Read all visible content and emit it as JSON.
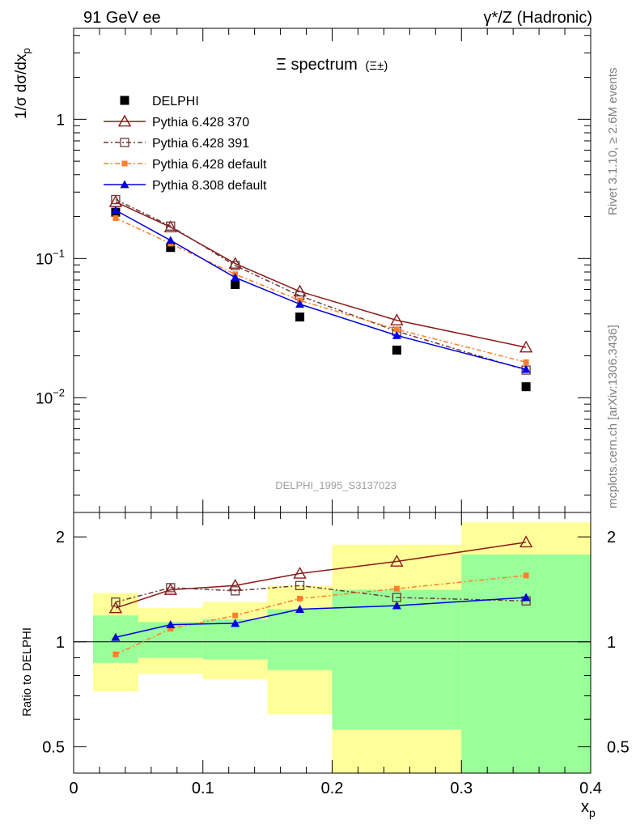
{
  "header": {
    "left": "91 GeV ee",
    "right": "γ*/Z (Hadronic)"
  },
  "side_labels": {
    "rivet": "Rivet 3.1.10, ≥ 2.6M events",
    "mcplots": "mcplots.cern.ch [arXiv:1306.3436]"
  },
  "watermark": "DELPHI_1995_S3137023",
  "colors": {
    "data": "#000000",
    "p370": "#8b1a1a",
    "p391": "#6b3a3a",
    "p6def": "#ff7f2a",
    "p8def": "#0000dd",
    "band_inner": "#99ff99",
    "band_outer": "#ffff99"
  },
  "chart_data": [
    {
      "type": "scatter",
      "panel": "main",
      "title": "Ξ spectrum",
      "title_suffix": "(Ξ±)",
      "ylabel": "1/σ dσ/dx_p",
      "yscale": "log",
      "ylim": [
        0.0015,
        4.5
      ],
      "xlim": [
        0,
        0.4
      ],
      "y_ticks": [
        "10^-2",
        "10^-1",
        "1"
      ],
      "legend": "top-left",
      "x": [
        0.0325,
        0.075,
        0.125,
        0.175,
        0.25,
        0.35
      ],
      "series": [
        {
          "name": "DELPHI",
          "values": [
            0.215,
            0.12,
            0.065,
            0.038,
            0.022,
            0.012
          ]
        },
        {
          "name": "Pythia 6.428 370",
          "values": [
            0.255,
            0.168,
            0.092,
            0.058,
            0.036,
            0.023
          ]
        },
        {
          "name": "Pythia 6.428 391",
          "values": [
            0.265,
            0.171,
            0.089,
            0.054,
            0.03,
            0.0158
          ]
        },
        {
          "name": "Pythia 6.428 default",
          "values": [
            0.195,
            0.128,
            0.077,
            0.05,
            0.031,
            0.018
          ]
        },
        {
          "name": "Pythia 8.308 default",
          "values": [
            0.222,
            0.135,
            0.073,
            0.047,
            0.028,
            0.016
          ]
        }
      ]
    },
    {
      "type": "scatter",
      "panel": "ratio",
      "ylabel": "Ratio to DELPHI",
      "xlabel": "x_p",
      "yscale": "log",
      "ylim": [
        0.42,
        2.35
      ],
      "xlim": [
        0,
        0.4
      ],
      "x_ticks": [
        "0",
        "0.1",
        "0.2",
        "0.3",
        "0.4"
      ],
      "y_ticks": [
        "0.5",
        "1",
        "2"
      ],
      "bins": [
        [
          0.015,
          0.05
        ],
        [
          0.05,
          0.1
        ],
        [
          0.1,
          0.15
        ],
        [
          0.15,
          0.2
        ],
        [
          0.2,
          0.3
        ],
        [
          0.3,
          0.4
        ]
      ],
      "band_inner": [
        [
          0.87,
          1.19
        ],
        [
          0.9,
          1.14
        ],
        [
          0.89,
          1.16
        ],
        [
          0.83,
          1.24
        ],
        [
          0.56,
          1.41
        ],
        [
          0.42,
          1.78
        ]
      ],
      "band_outer": [
        [
          0.72,
          1.38
        ],
        [
          0.81,
          1.25
        ],
        [
          0.78,
          1.3
        ],
        [
          0.62,
          1.45
        ],
        [
          0.42,
          1.9
        ],
        [
          0.42,
          2.2
        ]
      ],
      "x": [
        0.0325,
        0.075,
        0.125,
        0.175,
        0.25,
        0.35
      ],
      "series": [
        {
          "name": "Pythia 6.428 370",
          "values": [
            1.25,
            1.41,
            1.45,
            1.57,
            1.7,
            1.93
          ]
        },
        {
          "name": "Pythia 6.428 391",
          "values": [
            1.3,
            1.43,
            1.4,
            1.45,
            1.34,
            1.31
          ]
        },
        {
          "name": "Pythia 6.428 default",
          "values": [
            0.92,
            1.09,
            1.19,
            1.33,
            1.42,
            1.55
          ]
        },
        {
          "name": "Pythia 8.308 default",
          "values": [
            1.03,
            1.12,
            1.13,
            1.24,
            1.27,
            1.34
          ]
        }
      ]
    }
  ]
}
